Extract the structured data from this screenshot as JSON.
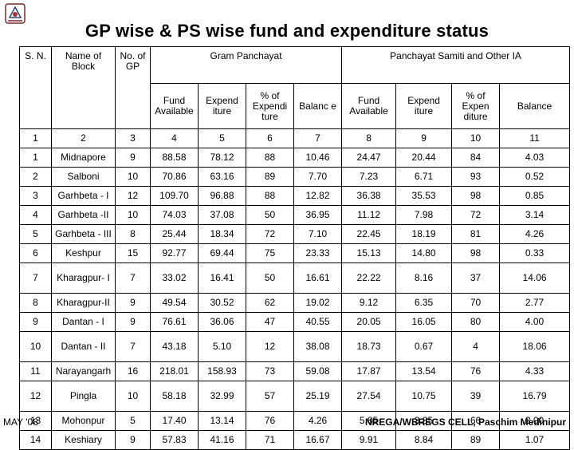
{
  "title": "GP wise & PS wise fund and expenditure status",
  "logo_icon": "emblem-icon",
  "footer": {
    "date": "MAY '08",
    "cell": "NREGA/WBREGS CELL, Paschim Medinipur"
  },
  "header": {
    "sn": "S. N.",
    "block": "Name of Block",
    "gp_count": "No. of GP",
    "gram_panchayat": "Gram Panchayat",
    "samiti": "Panchayat Samiti and Other IA",
    "gp_cols": [
      "Fund Available",
      "Expend iture",
      "% of Expendi ture",
      "Balanc e"
    ],
    "ps_cols": [
      "Fund Available",
      "Expend iture",
      "% of Expen diture",
      "Balance"
    ]
  },
  "index_row": [
    "1",
    "2",
    "3",
    "4",
    "5",
    "6",
    "7",
    "8",
    "9",
    "10",
    "11"
  ],
  "rows": [
    [
      "1",
      "Midnapore",
      "9",
      "88.58",
      "78.12",
      "88",
      "10.46",
      "24.47",
      "20.44",
      "84",
      "4.03"
    ],
    [
      "2",
      "Salboni",
      "10",
      "70.86",
      "63.16",
      "89",
      "7.70",
      "7.23",
      "6.71",
      "93",
      "0.52"
    ],
    [
      "3",
      "Garhbeta - I",
      "12",
      "109.70",
      "96.88",
      "88",
      "12.82",
      "36.38",
      "35.53",
      "98",
      "0.85"
    ],
    [
      "4",
      "Garhbeta -II",
      "10",
      "74.03",
      "37.08",
      "50",
      "36.95",
      "11.12",
      "7.98",
      "72",
      "3.14"
    ],
    [
      "5",
      "Garhbeta - III",
      "8",
      "25.44",
      "18.34",
      "72",
      "7.10",
      "22.45",
      "18.19",
      "81",
      "4.26"
    ],
    [
      "6",
      "Keshpur",
      "15",
      "92.77",
      "69.44",
      "75",
      "23.33",
      "15.13",
      "14.80",
      "98",
      "0.33"
    ],
    [
      "7",
      "Kharagpur- I",
      "7",
      "33.02",
      "16.41",
      "50",
      "16.61",
      "22.22",
      "8.16",
      "37",
      "14.06"
    ],
    [
      "8",
      "Kharagpur-II",
      "9",
      "49.54",
      "30.52",
      "62",
      "19.02",
      "9.12",
      "6.35",
      "70",
      "2.77"
    ],
    [
      "9",
      "Dantan - I",
      "9",
      "76.61",
      "36.06",
      "47",
      "40.55",
      "20.05",
      "16.05",
      "80",
      "4.00"
    ],
    [
      "10",
      "Dantan - II",
      "7",
      "43.18",
      "5.10",
      "12",
      "38.08",
      "18.73",
      "0.67",
      "4",
      "18.06"
    ],
    [
      "11",
      "Narayangarh",
      "16",
      "218.01",
      "158.93",
      "73",
      "59.08",
      "17.87",
      "13.54",
      "76",
      "4.33"
    ],
    [
      "12",
      "Pingla",
      "10",
      "58.18",
      "32.99",
      "57",
      "25.19",
      "27.54",
      "10.75",
      "39",
      "16.79"
    ],
    [
      "13",
      "Mohonpur",
      "5",
      "17.40",
      "13.14",
      "76",
      "4.26",
      "5.85",
      "3.85",
      "66",
      "2.00"
    ],
    [
      "14",
      "Keshiary",
      "9",
      "57.83",
      "41.16",
      "71",
      "16.67",
      "9.91",
      "8.84",
      "89",
      "1.07"
    ]
  ]
}
